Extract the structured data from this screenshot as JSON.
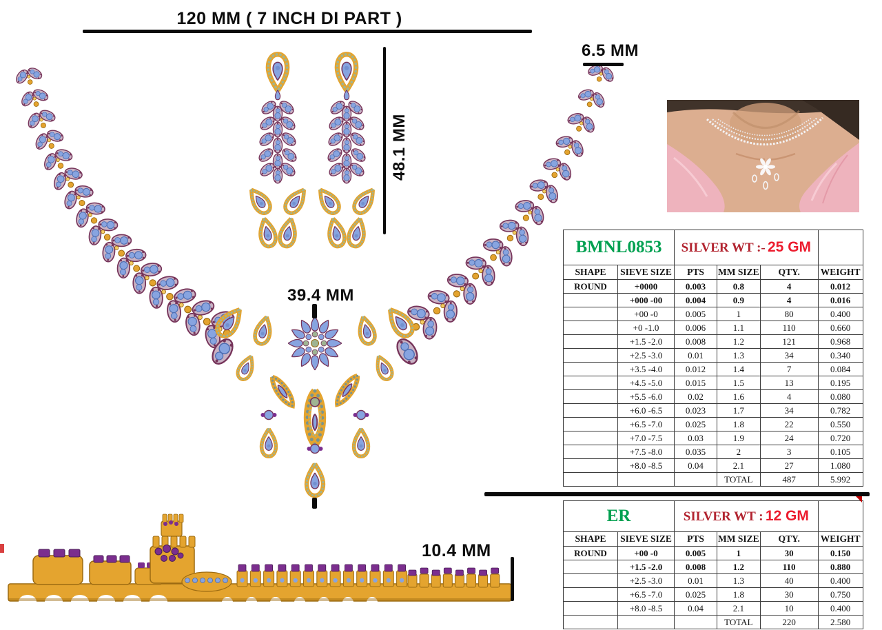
{
  "annotations": {
    "necklace_width": "120 MM ( 7 INCH DI PART )",
    "earring_width": "6.5 MM",
    "earring_length": "48.1 MM",
    "pendant_drop": "39.4 MM",
    "band_depth": "10.4 MM"
  },
  "tables": [
    {
      "id_label": "BMNL0853",
      "wt_prefix": "SILVER WT :-",
      "wt_value": "25 GM",
      "headers": [
        "SHAPE",
        "SIEVE SIZE",
        "PTS",
        "MM SIZE",
        "QTY.",
        "WEIGHT"
      ],
      "rows": [
        {
          "bold": true,
          "cells": [
            "ROUND",
            "+0000",
            "0.003",
            "0.8",
            "4",
            "0.012"
          ]
        },
        {
          "bold": true,
          "cells": [
            "",
            "+000 -00",
            "0.004",
            "0.9",
            "4",
            "0.016"
          ]
        },
        {
          "bold": false,
          "cells": [
            "",
            "+00 -0",
            "0.005",
            "1",
            "80",
            "0.400"
          ]
        },
        {
          "bold": false,
          "cells": [
            "",
            "+0 -1.0",
            "0.006",
            "1.1",
            "110",
            "0.660"
          ]
        },
        {
          "bold": false,
          "cells": [
            "",
            "+1.5 -2.0",
            "0.008",
            "1.2",
            "121",
            "0.968"
          ]
        },
        {
          "bold": false,
          "cells": [
            "",
            "+2.5 -3.0",
            "0.01",
            "1.3",
            "34",
            "0.340"
          ]
        },
        {
          "bold": false,
          "cells": [
            "",
            "+3.5 -4.0",
            "0.012",
            "1.4",
            "7",
            "0.084"
          ]
        },
        {
          "bold": false,
          "cells": [
            "",
            "+4.5 -5.0",
            "0.015",
            "1.5",
            "13",
            "0.195"
          ]
        },
        {
          "bold": false,
          "cells": [
            "",
            "+5.5 -6.0",
            "0.02",
            "1.6",
            "4",
            "0.080"
          ]
        },
        {
          "bold": false,
          "cells": [
            "",
            "+6.0 -6.5",
            "0.023",
            "1.7",
            "34",
            "0.782"
          ]
        },
        {
          "bold": false,
          "cells": [
            "",
            "+6.5 -7.0",
            "0.025",
            "1.8",
            "22",
            "0.550"
          ]
        },
        {
          "bold": false,
          "cells": [
            "",
            "+7.0 -7.5",
            "0.03",
            "1.9",
            "24",
            "0.720"
          ]
        },
        {
          "bold": false,
          "cells": [
            "",
            "+7.5 -8.0",
            "0.035",
            "2",
            "3",
            "0.105"
          ]
        },
        {
          "bold": false,
          "cells": [
            "",
            "+8.0 -8.5",
            "0.04",
            "2.1",
            "27",
            "1.080"
          ]
        },
        {
          "bold": false,
          "cells": [
            "",
            "",
            "",
            "TOTAL",
            "487",
            "5.992"
          ]
        }
      ]
    },
    {
      "id_label": "ER",
      "wt_prefix": "SILVER WT :",
      "wt_value": "12 GM",
      "headers": [
        "SHAPE",
        "SIEVE SIZE",
        "PTS",
        "MM SIZE",
        "QTY.",
        "WEIGHT"
      ],
      "rows": [
        {
          "bold": true,
          "cells": [
            "ROUND",
            "+00 -0",
            "0.005",
            "1",
            "30",
            "0.150"
          ]
        },
        {
          "bold": true,
          "cells": [
            "",
            "+1.5 -2.0",
            "0.008",
            "1.2",
            "110",
            "0.880"
          ]
        },
        {
          "bold": false,
          "cells": [
            "",
            "+2.5 -3.0",
            "0.01",
            "1.3",
            "40",
            "0.400"
          ]
        },
        {
          "bold": false,
          "cells": [
            "",
            "+6.5 -7.0",
            "0.025",
            "1.8",
            "30",
            "0.750"
          ]
        },
        {
          "bold": false,
          "cells": [
            "",
            "+8.0 -8.5",
            "0.04",
            "2.1",
            "10",
            "0.400"
          ]
        },
        {
          "bold": false,
          "cells": [
            "",
            "",
            "",
            "TOTAL",
            "220",
            "2.580"
          ]
        }
      ]
    }
  ],
  "art_colors": {
    "gold": "#E4A42F",
    "gold_dark": "#9C6B12",
    "gold_light": "#F4CB66",
    "stone_blue": "#87A4E0",
    "stone_blue_dark": "#4C6CB0",
    "leaf_mauve": "#C9B2C4",
    "accent_plum": "#76345A",
    "bead_sage": "#9FB492",
    "bead_teal": "#7A948C",
    "band_purple": "#7B2E8E",
    "design_code_green": "#00A050",
    "silver_label_red": "#B22430",
    "silver_value_red": "#EC1C2E"
  }
}
